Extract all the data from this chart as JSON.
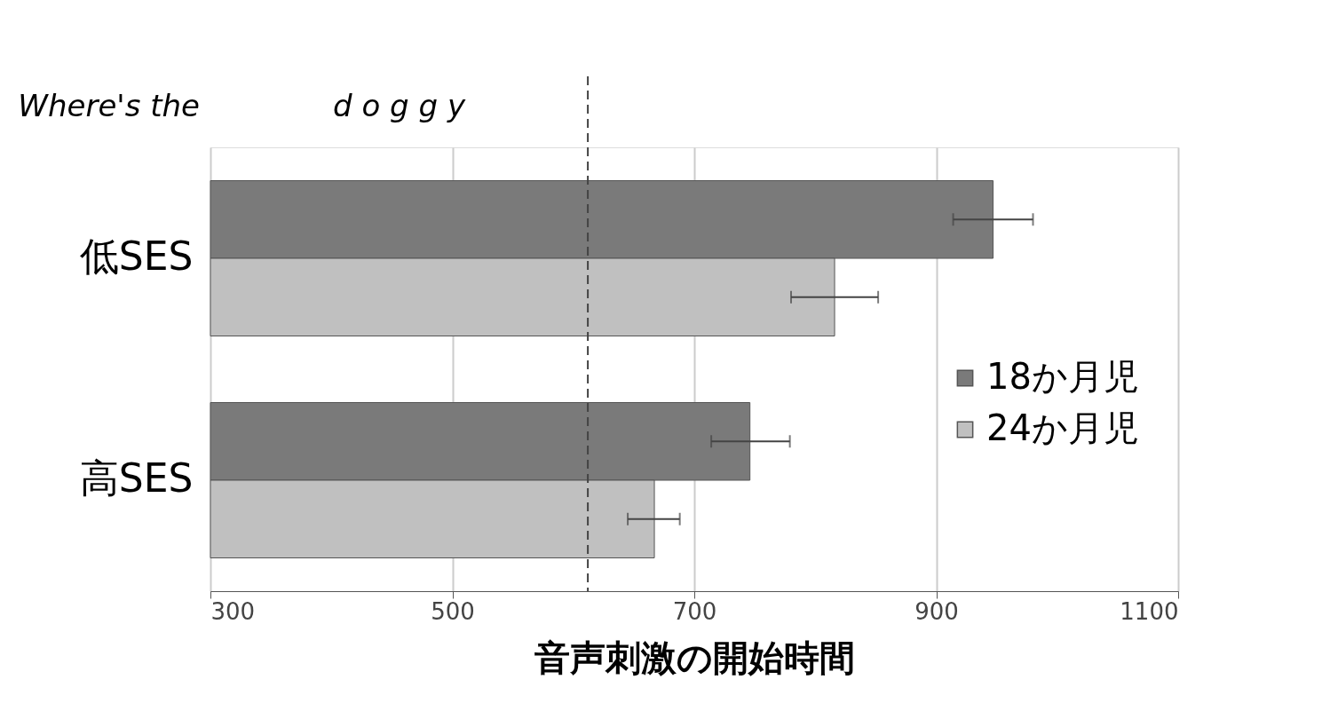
{
  "chart_data": {
    "type": "bar",
    "orientation": "horizontal",
    "xlabel": "音声刺激の開始時間",
    "categories": [
      "低SES",
      "高SES"
    ],
    "series": [
      {
        "name": "18か月児",
        "color": "#7a7a7a",
        "values": [
          947,
          746
        ],
        "errors": [
          [
            914,
            980
          ],
          [
            714,
            779
          ]
        ]
      },
      {
        "name": "24か月児",
        "color": "#c0c0c0",
        "values": [
          816,
          667
        ],
        "errors": [
          [
            780,
            852
          ],
          [
            645,
            688
          ]
        ]
      }
    ],
    "xlim": [
      300,
      1100
    ],
    "xticks": [
      300,
      500,
      700,
      900,
      1100
    ],
    "grid": "x",
    "legend": "right",
    "ref_lines": [
      {
        "axis": "x",
        "value": 612,
        "line_style": "dashed",
        "color": "#444444"
      }
    ],
    "annotations": [
      "Where's the",
      "d o g g y"
    ]
  }
}
